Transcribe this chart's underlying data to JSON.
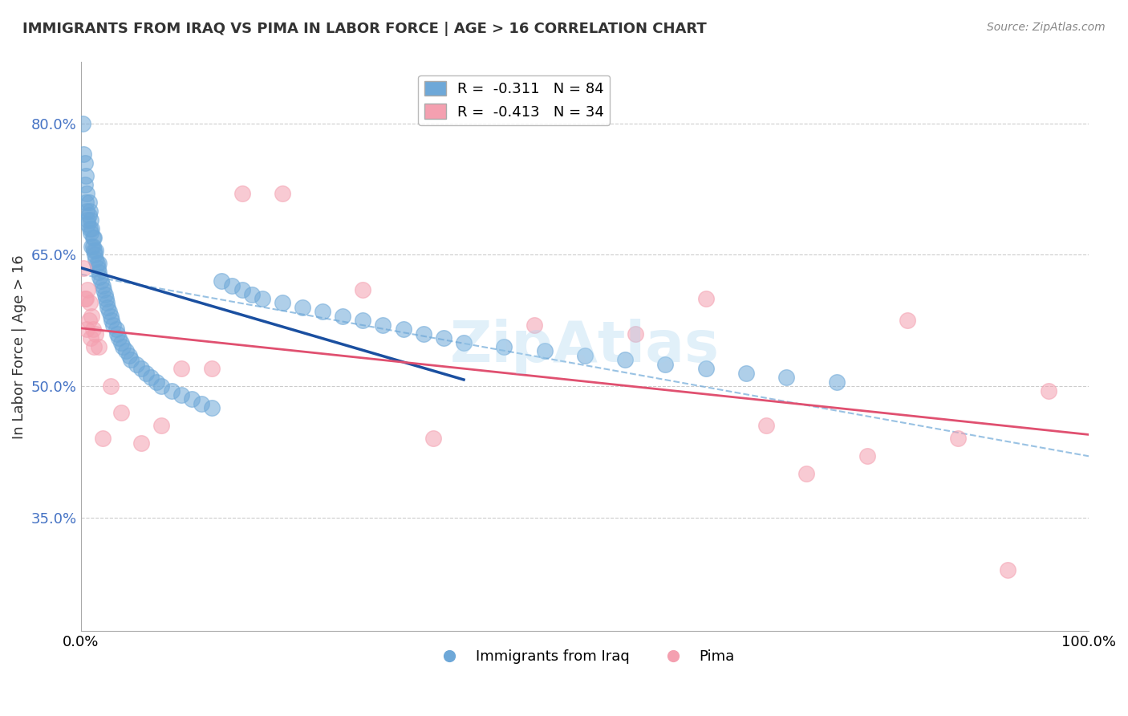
{
  "title": "IMMIGRANTS FROM IRAQ VS PIMA IN LABOR FORCE | AGE > 16 CORRELATION CHART",
  "source": "Source: ZipAtlas.com",
  "xlabel": "",
  "ylabel": "In Labor Force | Age > 16",
  "legend_blue_r": "R =  -0.311",
  "legend_blue_n": "N = 84",
  "legend_pink_r": "R =  -0.413",
  "legend_pink_n": "N = 34",
  "xlim": [
    0.0,
    1.0
  ],
  "ylim": [
    0.22,
    0.87
  ],
  "yticks": [
    0.35,
    0.5,
    0.65,
    0.8
  ],
  "ytick_labels": [
    "35.0%",
    "50.0%",
    "65.0%",
    "80.0%"
  ],
  "xtick_labels": [
    "0.0%",
    "100.0%"
  ],
  "xticks": [
    0.0,
    1.0
  ],
  "blue_color": "#6ea8d8",
  "pink_color": "#f4a0b0",
  "blue_line_color": "#1a4fa0",
  "pink_line_color": "#e05070",
  "blue_dashed_color": "#6ea8d8",
  "watermark": "ZipAtlas",
  "blue_points_x": [
    0.002,
    0.003,
    0.004,
    0.004,
    0.005,
    0.005,
    0.006,
    0.006,
    0.007,
    0.007,
    0.008,
    0.008,
    0.009,
    0.009,
    0.01,
    0.01,
    0.011,
    0.011,
    0.012,
    0.012,
    0.013,
    0.013,
    0.014,
    0.015,
    0.015,
    0.016,
    0.017,
    0.018,
    0.018,
    0.019,
    0.02,
    0.022,
    0.023,
    0.024,
    0.025,
    0.026,
    0.027,
    0.028,
    0.03,
    0.031,
    0.032,
    0.035,
    0.036,
    0.038,
    0.04,
    0.042,
    0.045,
    0.048,
    0.05,
    0.055,
    0.06,
    0.065,
    0.07,
    0.075,
    0.08,
    0.09,
    0.1,
    0.11,
    0.12,
    0.13,
    0.14,
    0.15,
    0.16,
    0.17,
    0.18,
    0.2,
    0.22,
    0.24,
    0.26,
    0.28,
    0.3,
    0.32,
    0.34,
    0.36,
    0.38,
    0.42,
    0.46,
    0.5,
    0.54,
    0.58,
    0.62,
    0.66,
    0.7,
    0.75
  ],
  "blue_points_y": [
    0.8,
    0.765,
    0.73,
    0.755,
    0.71,
    0.74,
    0.7,
    0.72,
    0.685,
    0.69,
    0.695,
    0.71,
    0.68,
    0.7,
    0.675,
    0.69,
    0.66,
    0.68,
    0.66,
    0.67,
    0.655,
    0.67,
    0.65,
    0.645,
    0.655,
    0.64,
    0.635,
    0.63,
    0.64,
    0.625,
    0.62,
    0.615,
    0.61,
    0.605,
    0.6,
    0.595,
    0.59,
    0.585,
    0.58,
    0.575,
    0.57,
    0.565,
    0.56,
    0.555,
    0.55,
    0.545,
    0.54,
    0.535,
    0.53,
    0.525,
    0.52,
    0.515,
    0.51,
    0.505,
    0.5,
    0.495,
    0.49,
    0.485,
    0.48,
    0.475,
    0.62,
    0.615,
    0.61,
    0.605,
    0.6,
    0.595,
    0.59,
    0.585,
    0.58,
    0.575,
    0.57,
    0.565,
    0.56,
    0.555,
    0.55,
    0.545,
    0.54,
    0.535,
    0.53,
    0.525,
    0.52,
    0.515,
    0.51,
    0.505
  ],
  "pink_points_x": [
    0.003,
    0.004,
    0.005,
    0.006,
    0.007,
    0.008,
    0.009,
    0.01,
    0.011,
    0.012,
    0.013,
    0.015,
    0.018,
    0.022,
    0.03,
    0.04,
    0.06,
    0.08,
    0.1,
    0.13,
    0.16,
    0.2,
    0.28,
    0.35,
    0.45,
    0.55,
    0.62,
    0.68,
    0.72,
    0.78,
    0.82,
    0.87,
    0.92,
    0.96
  ],
  "pink_points_y": [
    0.635,
    0.6,
    0.6,
    0.565,
    0.61,
    0.575,
    0.595,
    0.555,
    0.58,
    0.565,
    0.545,
    0.56,
    0.545,
    0.44,
    0.5,
    0.47,
    0.435,
    0.455,
    0.52,
    0.52,
    0.72,
    0.72,
    0.61,
    0.44,
    0.57,
    0.56,
    0.6,
    0.455,
    0.4,
    0.42,
    0.575,
    0.44,
    0.29,
    0.495
  ]
}
